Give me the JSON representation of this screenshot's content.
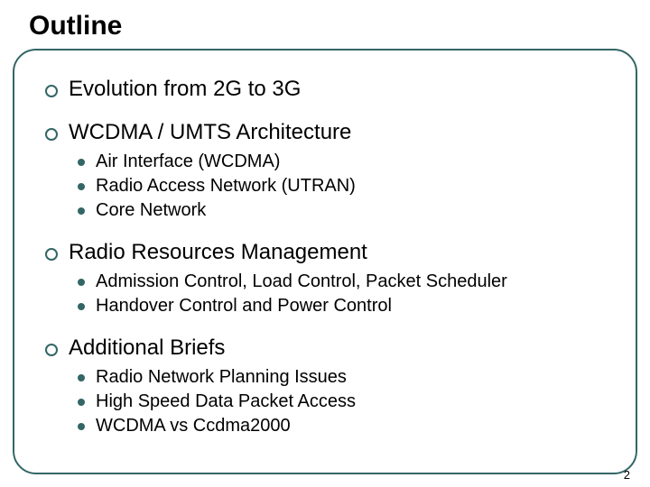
{
  "slide": {
    "title": "Outline",
    "page_number": "2",
    "frame_border_color": "#336666",
    "bullet_border_color": "#336666",
    "subbullet_fill_color": "#336666",
    "background_color": "#ffffff",
    "title_fontsize": 30,
    "l1_fontsize": 24,
    "l2_fontsize": 20,
    "items": [
      {
        "text": "Evolution from 2G to 3G",
        "children": []
      },
      {
        "text": "WCDMA / UMTS Architecture",
        "children": [
          "Air Interface (WCDMA)",
          "Radio Access Network (UTRAN)",
          "Core Network"
        ]
      },
      {
        "text": "Radio Resources Management",
        "children": [
          "Admission Control, Load Control, Packet Scheduler",
          "Handover Control and Power Control"
        ]
      },
      {
        "text": "Additional Briefs",
        "children": [
          "Radio Network Planning Issues",
          "High Speed Data Packet Access",
          "WCDMA vs Ccdma2000"
        ]
      }
    ]
  }
}
